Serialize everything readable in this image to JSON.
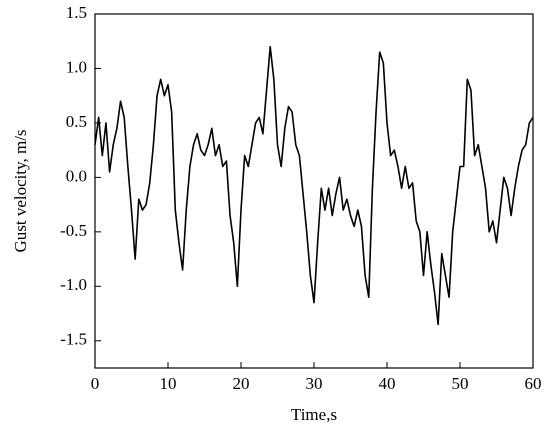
{
  "chart_data": {
    "type": "line",
    "xlabel": "Time,s",
    "ylabel": "Gust velocity, m/s",
    "x": [
      0,
      0.5,
      1,
      1.5,
      2,
      2.5,
      3,
      3.5,
      4,
      4.5,
      5,
      5.5,
      6,
      6.5,
      7,
      7.5,
      8,
      8.5,
      9,
      9.5,
      10,
      10.5,
      11,
      11.5,
      12,
      12.5,
      13,
      13.5,
      14,
      14.5,
      15,
      15.5,
      16,
      16.5,
      17,
      17.5,
      18,
      18.5,
      19,
      19.5,
      20,
      20.5,
      21,
      21.5,
      22,
      22.5,
      23,
      23.5,
      24,
      24.5,
      25,
      25.5,
      26,
      26.5,
      27,
      27.5,
      28,
      28.5,
      29,
      29.5,
      30,
      30.5,
      31,
      31.5,
      32,
      32.5,
      33,
      33.5,
      34,
      34.5,
      35,
      35.5,
      36,
      36.5,
      37,
      37.5,
      38,
      38.5,
      39,
      39.5,
      40,
      40.5,
      41,
      41.5,
      42,
      42.5,
      43,
      43.5,
      44,
      44.5,
      45,
      45.5,
      46,
      46.5,
      47,
      47.5,
      48,
      48.5,
      49,
      49.5,
      50,
      50.5,
      51,
      51.5,
      52,
      52.5,
      53,
      53.5,
      54,
      54.5,
      55,
      55.5,
      56,
      56.5,
      57,
      57.5,
      58,
      58.5,
      59,
      59.5,
      60
    ],
    "series": [
      {
        "color": "#000000",
        "values": [
          0.3,
          0.55,
          0.2,
          0.5,
          0.05,
          0.3,
          0.45,
          0.7,
          0.55,
          0.1,
          -0.3,
          -0.75,
          -0.2,
          -0.3,
          -0.25,
          -0.05,
          0.3,
          0.75,
          0.9,
          0.75,
          0.85,
          0.6,
          -0.3,
          -0.6,
          -0.85,
          -0.3,
          0.1,
          0.3,
          0.4,
          0.25,
          0.2,
          0.3,
          0.45,
          0.2,
          0.3,
          0.1,
          0.15,
          -0.35,
          -0.6,
          -1.0,
          -0.3,
          0.2,
          0.1,
          0.3,
          0.5,
          0.55,
          0.4,
          0.8,
          1.2,
          0.9,
          0.3,
          0.1,
          0.45,
          0.65,
          0.6,
          0.3,
          0.2,
          -0.15,
          -0.5,
          -0.9,
          -1.15,
          -0.6,
          -0.1,
          -0.3,
          -0.1,
          -0.35,
          -0.15,
          0.0,
          -0.3,
          -0.2,
          -0.35,
          -0.45,
          -0.3,
          -0.45,
          -0.9,
          -1.1,
          -0.1,
          0.6,
          1.15,
          1.05,
          0.5,
          0.2,
          0.25,
          0.1,
          -0.1,
          0.1,
          -0.1,
          -0.05,
          -0.4,
          -0.5,
          -0.9,
          -0.5,
          -0.8,
          -1.05,
          -1.35,
          -0.7,
          -0.9,
          -1.1,
          -0.5,
          -0.2,
          0.1,
          0.1,
          0.9,
          0.8,
          0.2,
          0.3,
          0.1,
          -0.1,
          -0.5,
          -0.4,
          -0.6,
          -0.3,
          0.0,
          -0.1,
          -0.35,
          -0.1,
          0.1,
          0.25,
          0.3,
          0.5,
          0.55
        ]
      }
    ],
    "xlim": [
      0,
      60
    ],
    "xticks": [
      0,
      10,
      20,
      30,
      40,
      50,
      60
    ],
    "ylim": [
      -1.75,
      1.5
    ],
    "yticks": [
      {
        "value": -1.5,
        "label": "-1.5"
      },
      {
        "value": -1,
        "label": "-1.0"
      },
      {
        "value": -0.5,
        "label": "-0.5"
      },
      {
        "value": 0,
        "label": "0.0"
      },
      {
        "value": 0.5,
        "label": "0.5"
      },
      {
        "value": 1,
        "label": "1.0"
      },
      {
        "value": 1.5,
        "label": "1.5"
      }
    ]
  }
}
